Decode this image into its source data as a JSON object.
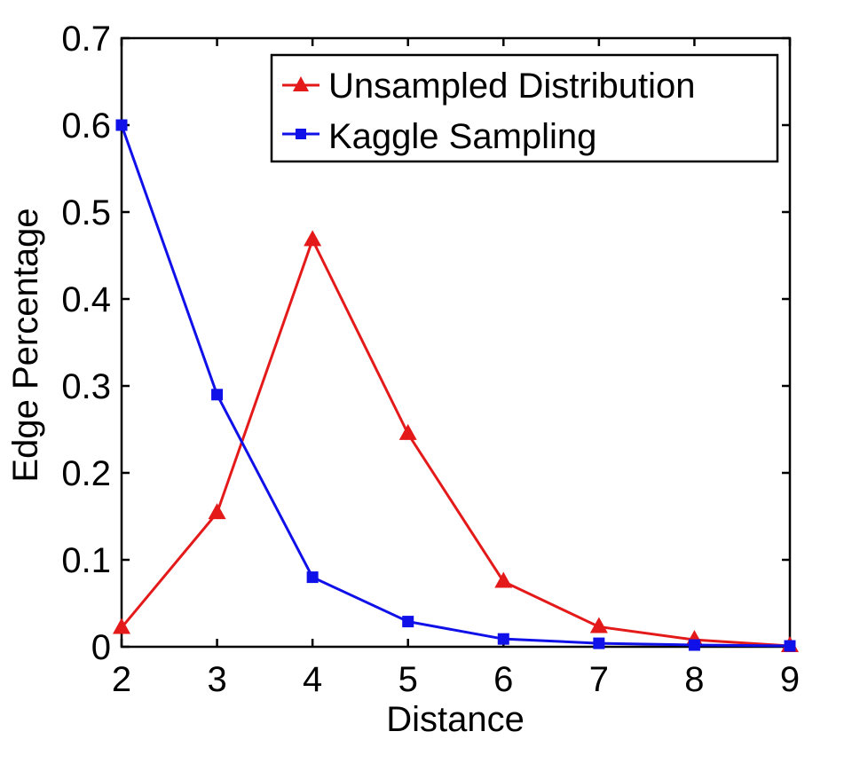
{
  "chart_data": {
    "type": "line",
    "title": "",
    "xlabel": "Distance",
    "ylabel": "Edge Percentage",
    "xlim": [
      2,
      9
    ],
    "ylim": [
      0,
      0.7
    ],
    "x": [
      2,
      3,
      4,
      5,
      6,
      7,
      8,
      9
    ],
    "x_tick_labels": [
      "2",
      "3",
      "4",
      "5",
      "6",
      "7",
      "8",
      "9"
    ],
    "y_ticks": [
      0,
      0.1,
      0.2,
      0.3,
      0.4,
      0.5,
      0.6,
      0.7
    ],
    "y_tick_labels": [
      "0",
      "0.1",
      "0.2",
      "0.3",
      "0.4",
      "0.5",
      "0.6",
      "0.7"
    ],
    "grid": false,
    "legend_position": "top-right",
    "series": [
      {
        "name": "Unsampled Distribution",
        "color": "#e41a1a",
        "marker": "triangle",
        "values": [
          0.022,
          0.154,
          0.468,
          0.245,
          0.075,
          0.023,
          0.008,
          0.001
        ]
      },
      {
        "name": "Kaggle Sampling",
        "color": "#1010e8",
        "marker": "square",
        "values": [
          0.6,
          0.29,
          0.08,
          0.029,
          0.009,
          0.004,
          0.002,
          0.001
        ]
      }
    ]
  }
}
